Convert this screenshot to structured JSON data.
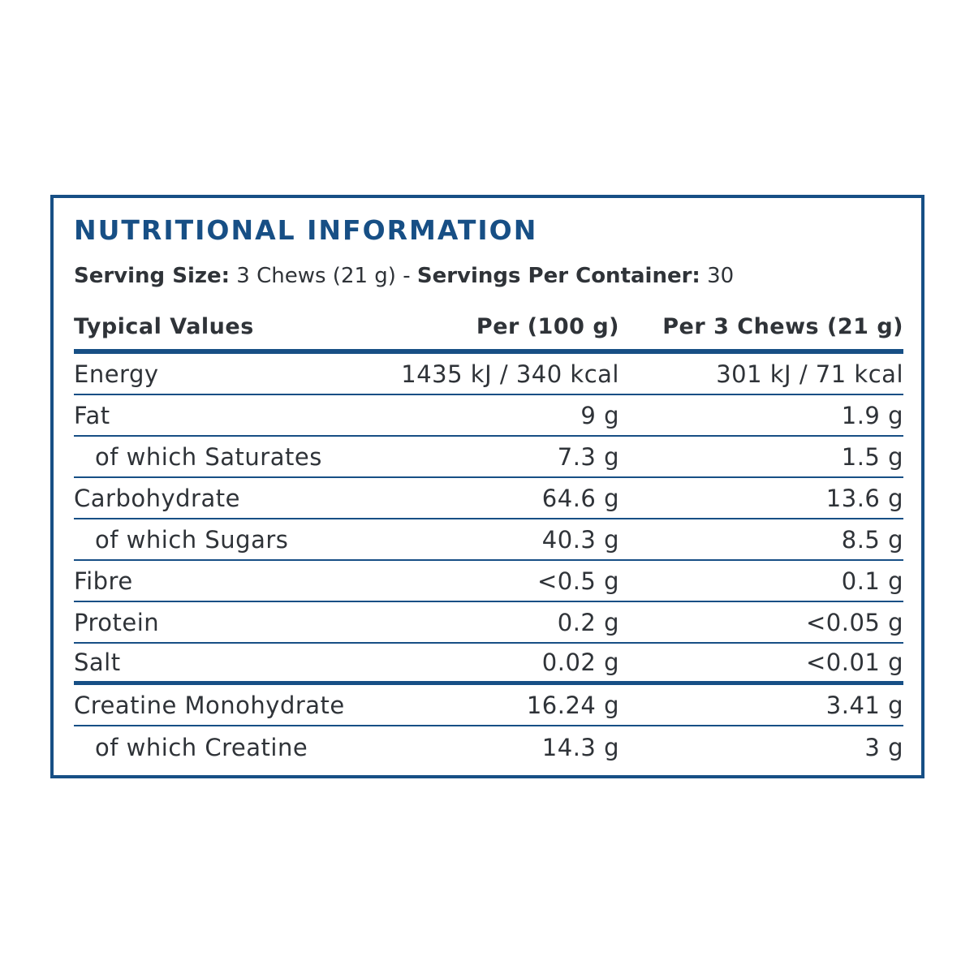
{
  "title": "NUTRITIONAL INFORMATION",
  "serving": {
    "size_label": "Serving Size:",
    "size_value": " 3 Chews (21 g) - ",
    "container_label": "Servings Per Container:",
    "container_value": " 30"
  },
  "header": {
    "label": "Typical Values",
    "per100": "Per (100 g)",
    "perserv": "Per 3 Chews (21 g)"
  },
  "rows": [
    {
      "label": "Energy",
      "per100": "1435 kJ / 340 kcal",
      "perserv": "301 kJ / 71 kcal"
    },
    {
      "label": "Fat",
      "per100": "9 g",
      "perserv": "1.9 g"
    },
    {
      "label": "of which Saturates",
      "per100": "7.3 g",
      "perserv": "1.5 g"
    },
    {
      "label": "Carbohydrate",
      "per100": "64.6 g",
      "perserv": "13.6 g"
    },
    {
      "label": "of which Sugars",
      "per100": "40.3 g",
      "perserv": "8.5 g"
    },
    {
      "label": "Fibre",
      "per100": "<0.5 g",
      "perserv": "0.1 g"
    },
    {
      "label": "Protein",
      "per100": "0.2 g",
      "perserv": "<0.05 g"
    },
    {
      "label": "Salt",
      "per100": "0.02 g",
      "perserv": "<0.01 g"
    },
    {
      "label": "Creatine Monohydrate",
      "per100": "16.24 g",
      "perserv": "3.41 g"
    },
    {
      "label": "of which Creatine",
      "per100": "14.3 g",
      "perserv": "3 g"
    }
  ],
  "colors": {
    "accent": "#174f85",
    "text": "#2f3338"
  }
}
